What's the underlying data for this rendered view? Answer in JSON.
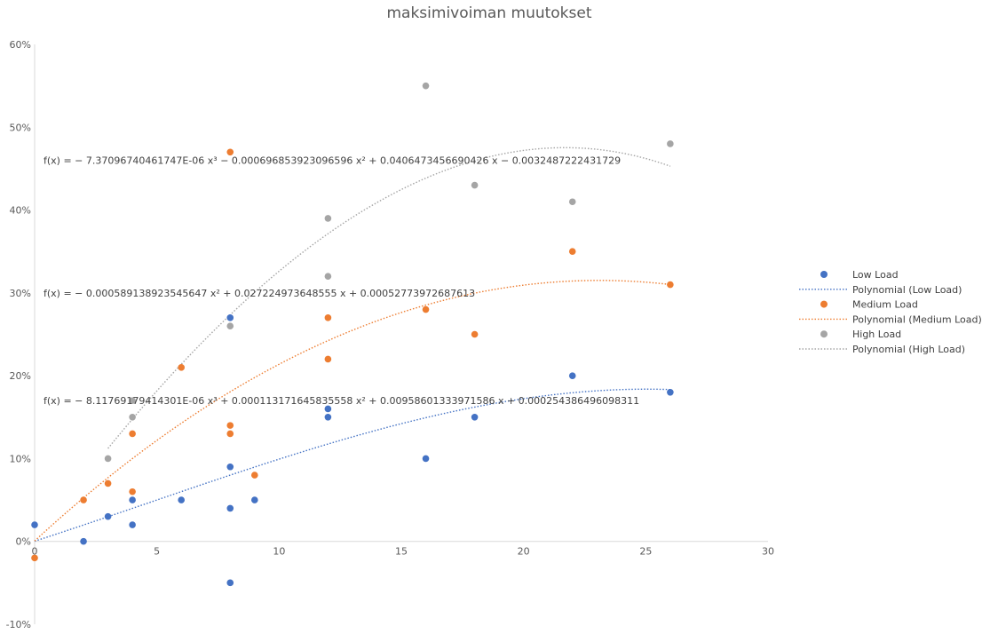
{
  "chart_data": {
    "type": "scatter",
    "title": "maksimivoiman muutokset",
    "xlabel": "",
    "ylabel": "",
    "xlim": [
      0,
      30
    ],
    "ylim": [
      -0.1,
      0.6
    ],
    "x_ticks": [
      0,
      5,
      10,
      15,
      20,
      25,
      30
    ],
    "x_tick_labels": [
      "0",
      "5",
      "10",
      "15",
      "20",
      "25",
      "30"
    ],
    "y_ticks": [
      -0.1,
      0.0,
      0.1,
      0.2,
      0.3,
      0.4,
      0.5,
      0.6
    ],
    "y_tick_labels": [
      "-10%",
      "0%",
      "10%",
      "20%",
      "30%",
      "40%",
      "50%",
      "60%"
    ],
    "grid": false,
    "legend_position": "right",
    "series": [
      {
        "name": "Low Load",
        "trend_name": "Polynomial (Low Load)",
        "color": "#4472C4",
        "points": [
          [
            0,
            0.02
          ],
          [
            2,
            0.0
          ],
          [
            3,
            0.03
          ],
          [
            4,
            0.05
          ],
          [
            4,
            0.02
          ],
          [
            6,
            0.05
          ],
          [
            8,
            0.27
          ],
          [
            8,
            0.09
          ],
          [
            8,
            0.04
          ],
          [
            8,
            -0.05
          ],
          [
            9,
            0.05
          ],
          [
            12,
            0.16
          ],
          [
            12,
            0.15
          ],
          [
            16,
            0.1
          ],
          [
            18,
            0.15
          ],
          [
            22,
            0.2
          ],
          [
            26,
            0.18
          ]
        ],
        "trend_coefficients": [
          0.000254386496098311,
          0.00958601333971586,
          0.000113171645835558,
          -8.11769179414301e-06
        ],
        "equation": "f(x) = − 8.11769179414301E-06 x³ + 0.000113171645835558 x² + 0.00958601333971586 x + 0.000254386496098311"
      },
      {
        "name": "Medium Load",
        "trend_name": "Polynomial (Medium Load)",
        "color": "#ED7D31",
        "points": [
          [
            0,
            -0.02
          ],
          [
            2,
            0.05
          ],
          [
            3,
            0.07
          ],
          [
            4,
            0.13
          ],
          [
            4,
            0.06
          ],
          [
            6,
            0.21
          ],
          [
            8,
            0.47
          ],
          [
            8,
            0.14
          ],
          [
            8,
            0.13
          ],
          [
            9,
            0.08
          ],
          [
            12,
            0.27
          ],
          [
            12,
            0.22
          ],
          [
            16,
            0.28
          ],
          [
            18,
            0.25
          ],
          [
            22,
            0.35
          ],
          [
            26,
            0.31
          ]
        ],
        "trend_coefficients": [
          0.00052773972687613,
          0.027224973648555,
          -0.00058913892354564
        ],
        "equation": "f(x) = − 0.000589138923545647 x² + 0.027224973648555 x + 0.00052773972687613"
      },
      {
        "name": "High Load",
        "trend_name": "Polynomial (High Load)",
        "color": "#A5A5A5",
        "points": [
          [
            3,
            0.1
          ],
          [
            4,
            0.17
          ],
          [
            4,
            0.15
          ],
          [
            8,
            0.26
          ],
          [
            12,
            0.39
          ],
          [
            12,
            0.32
          ],
          [
            16,
            0.55
          ],
          [
            18,
            0.43
          ],
          [
            22,
            0.41
          ],
          [
            26,
            0.48
          ]
        ],
        "trend_coefficients": [
          -0.0032487222431729,
          0.0406473456690426,
          -0.000696853923096596,
          -7.3709674046174e-06
        ],
        "equation": "f(x) = − 7.37096740461747E-06 x³ − 0.000696853923096596 x² + 0.0406473456690426 x − 0.0032487222431729"
      }
    ]
  }
}
